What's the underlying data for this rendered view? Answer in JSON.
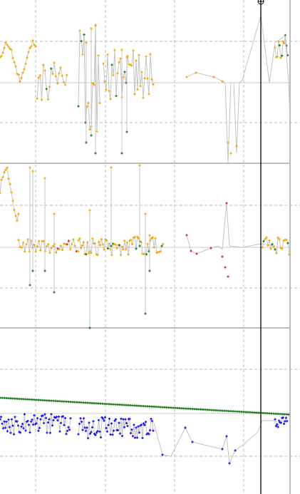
{
  "colors": {
    "background": "#ffffff",
    "grid": "#bdbdbd",
    "panel_border": "#bcbcbc",
    "trace_line": "#c4c4c4",
    "orange_marker": "#f5a800",
    "green_marker": "#1a7a1a",
    "red_marker": "#e02020",
    "blue_marker": "#1010ee",
    "green_line": "#1a7a1a",
    "blue_line": "#1010ee",
    "cursor": "#000000"
  },
  "icons": {
    "cursor_handle": "crosshair-circle-icon"
  },
  "chart_data": [
    {
      "type": "scatter",
      "panel": "top",
      "series": [
        {
          "marker": "orange"
        },
        {
          "marker": "green"
        }
      ],
      "grid": true
    },
    {
      "type": "scatter",
      "panel": "middle",
      "series": [
        {
          "marker": "orange"
        },
        {
          "marker": "green"
        },
        {
          "marker": "red"
        }
      ],
      "grid": true
    },
    {
      "type": "line",
      "panel": "bottom",
      "series": [
        {
          "marker": "green"
        },
        {
          "marker": "blue"
        }
      ],
      "grid": true
    }
  ]
}
